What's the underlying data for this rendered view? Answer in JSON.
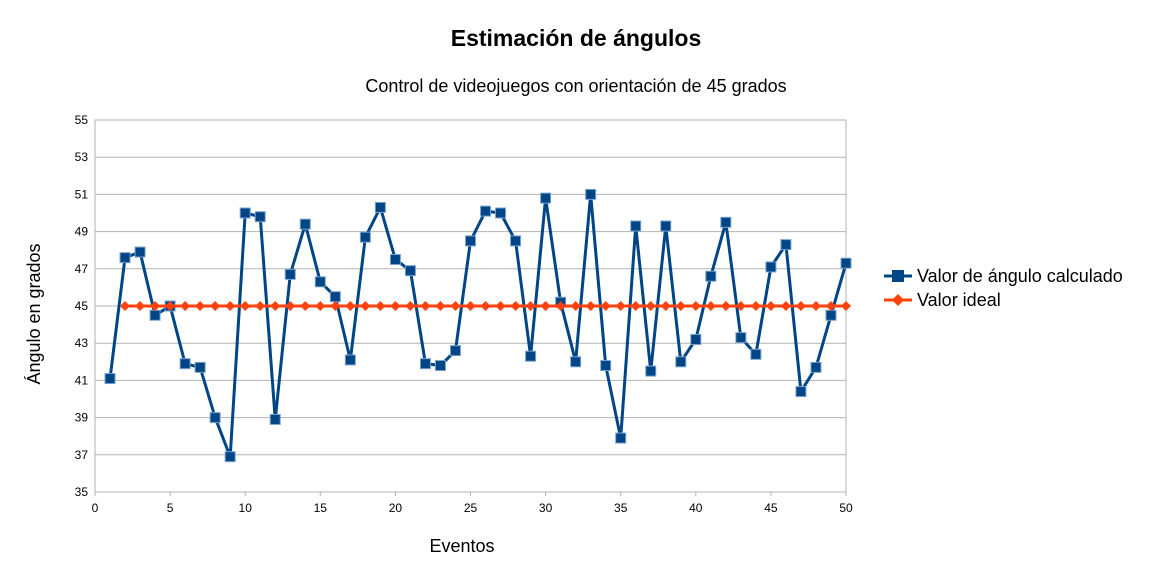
{
  "chart_data": {
    "type": "line",
    "title": "Estimación de ángulos",
    "subtitle": "Control de videojuegos con orientación de 45 grados",
    "xlabel": "Eventos",
    "ylabel": "Ángulo en grados",
    "xlim": [
      0,
      50
    ],
    "ylim": [
      35,
      55
    ],
    "x_ticks": [
      "0",
      "5",
      "10",
      "15",
      "20",
      "25",
      "30",
      "35",
      "40",
      "45",
      "50"
    ],
    "y_ticks": [
      "35",
      "37",
      "39",
      "41",
      "43",
      "45",
      "47",
      "49",
      "51",
      "53",
      "55"
    ],
    "grid": "horizontal",
    "legend_position": "right",
    "x": [
      1,
      2,
      3,
      4,
      5,
      6,
      7,
      8,
      9,
      10,
      11,
      12,
      13,
      14,
      15,
      16,
      17,
      18,
      19,
      20,
      21,
      22,
      23,
      24,
      25,
      26,
      27,
      28,
      29,
      30,
      31,
      32,
      33,
      34,
      35,
      36,
      37,
      38,
      39,
      40,
      41,
      42,
      43,
      44,
      45,
      46,
      47,
      48,
      49,
      50
    ],
    "series": [
      {
        "name": "Valor de ángulo calculado",
        "color": "#004586",
        "marker": "square",
        "values": [
          41.1,
          47.6,
          47.9,
          44.5,
          45.0,
          41.9,
          41.7,
          39.0,
          36.9,
          50.0,
          49.8,
          38.9,
          46.7,
          49.4,
          46.3,
          45.5,
          42.1,
          48.7,
          50.3,
          47.5,
          46.9,
          41.9,
          41.8,
          42.6,
          48.5,
          50.1,
          50.0,
          48.5,
          42.3,
          50.8,
          45.2,
          42.0,
          51.0,
          41.8,
          37.9,
          49.3,
          41.5,
          49.3,
          42.0,
          43.2,
          46.6,
          49.5,
          43.3,
          42.4,
          47.1,
          48.3,
          40.4,
          41.7,
          44.5,
          47.3
        ]
      },
      {
        "name": "Valor ideal",
        "color": "#ff420e",
        "marker": "diamond",
        "values": [
          null,
          45,
          45,
          45,
          45,
          45,
          45,
          45,
          45,
          45,
          45,
          45,
          45,
          45,
          45,
          45,
          45,
          45,
          45,
          45,
          45,
          45,
          45,
          45,
          45,
          45,
          45,
          45,
          45,
          45,
          45,
          45,
          45,
          45,
          45,
          45,
          45,
          45,
          45,
          45,
          45,
          45,
          45,
          45,
          45,
          45,
          45,
          45,
          45,
          45
        ]
      }
    ]
  }
}
